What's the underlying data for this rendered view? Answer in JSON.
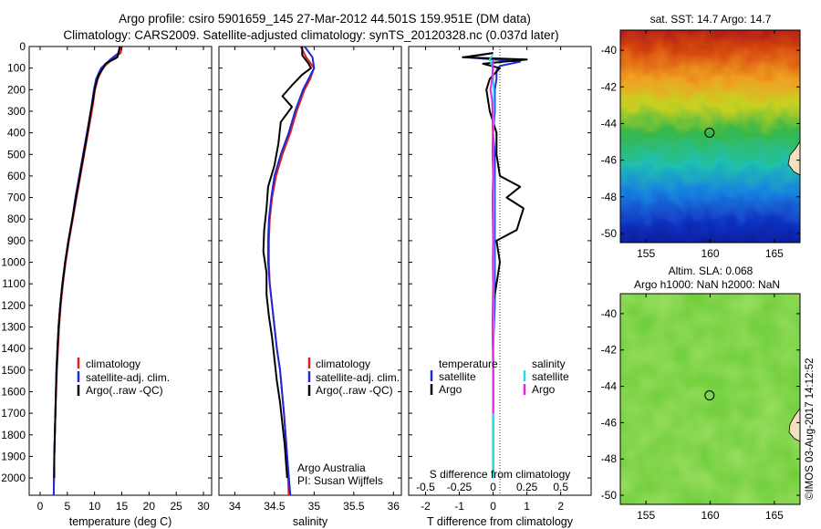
{
  "header": {
    "line1": "Argo profile: csiro 5901659_145 27-Mar-2012 44.501S 159.951E (DM data)",
    "line2": "Climatology: CARS2009. Satellite-adjusted climatology: synTS_20120328.nc (0.037d later)"
  },
  "colors": {
    "climatology": "#e0201c",
    "satellite": "#1c2ad8",
    "argo": "#000000",
    "sal_satellite": "#22dde6",
    "sal_argo": "#e026e0"
  },
  "depth_ticks": [
    "0",
    "100",
    "200",
    "300",
    "400",
    "500",
    "600",
    "700",
    "800",
    "900",
    "1000",
    "1100",
    "1200",
    "1300",
    "1400",
    "1500",
    "1600",
    "1700",
    "1800",
    "1900",
    "2000"
  ],
  "chart_data": [
    {
      "type": "line",
      "title": "",
      "xlabel": "temperature (deg C)",
      "ylabel": "depth",
      "xlim": [
        -2,
        31.5
      ],
      "ylim": [
        2080,
        0
      ],
      "xticks": [
        "0",
        "5",
        "10",
        "15",
        "20",
        "25",
        "30"
      ],
      "xtick_values": [
        0,
        5,
        10,
        15,
        20,
        25,
        30
      ],
      "legend": [
        "climatology",
        "satellite-adj. clim.",
        "Argo(..raw -QC)"
      ],
      "series": [
        {
          "name": "climatology",
          "depth": [
            0,
            30,
            60,
            100,
            150,
            200,
            300,
            400,
            500,
            600,
            700,
            800,
            900,
            1000,
            1100,
            1200,
            1300,
            1400,
            1500,
            1700,
            1900,
            2080
          ],
          "values": [
            15.0,
            14.8,
            13.2,
            11.5,
            10.6,
            10.1,
            9.5,
            8.8,
            8.1,
            7.4,
            6.7,
            6.0,
            5.3,
            4.7,
            4.2,
            3.8,
            3.5,
            3.3,
            3.1,
            2.8,
            2.6,
            2.5
          ]
        },
        {
          "name": "satellite-adj. clim.",
          "depth": [
            0,
            30,
            60,
            100,
            150,
            200,
            300,
            400,
            500,
            600,
            700,
            800,
            900,
            1000,
            1100,
            1200,
            1300,
            1400,
            1500,
            1700,
            1900,
            2080
          ],
          "values": [
            14.6,
            14.4,
            12.9,
            11.2,
            10.3,
            9.9,
            9.3,
            8.6,
            7.9,
            7.2,
            6.5,
            5.9,
            5.2,
            4.6,
            4.1,
            3.7,
            3.4,
            3.2,
            3.0,
            2.8,
            2.6,
            2.5
          ]
        },
        {
          "name": "Argo(..raw -QC)",
          "depth": [
            0,
            20,
            50,
            80,
            100,
            130,
            160,
            200,
            250,
            300,
            400,
            500,
            600,
            700,
            800,
            900,
            1000,
            1100,
            1200,
            1300,
            1400,
            1500,
            1600,
            1700,
            1800,
            1900,
            2000
          ],
          "values": [
            14.7,
            14.5,
            14.2,
            12.0,
            11.6,
            10.8,
            10.4,
            10.0,
            9.7,
            9.3,
            8.7,
            8.0,
            7.3,
            6.6,
            5.9,
            5.2,
            4.6,
            4.1,
            3.7,
            3.4,
            3.2,
            3.0,
            2.9,
            2.8,
            2.7,
            2.6,
            2.6
          ]
        }
      ]
    },
    {
      "type": "line",
      "title": "",
      "xlabel": "salinity",
      "ylabel": "depth",
      "xlim": [
        33.8,
        36.1
      ],
      "ylim": [
        2080,
        0
      ],
      "xticks": [
        "34",
        "34.5",
        "35",
        "35.5",
        "36"
      ],
      "xtick_values": [
        34,
        34.5,
        35,
        35.5,
        36
      ],
      "legend": [
        "climatology",
        "satellite-adj. clim.",
        "Argo(..raw -QC)"
      ],
      "annotation": [
        "Argo Australia",
        "PI: Susan Wijffels"
      ],
      "series": [
        {
          "name": "climatology",
          "depth": [
            0,
            50,
            100,
            150,
            200,
            300,
            400,
            500,
            600,
            700,
            800,
            900,
            1000,
            1100,
            1200,
            1300,
            1400,
            1500,
            1700,
            1900,
            2080
          ],
          "values": [
            34.83,
            34.9,
            35.0,
            34.95,
            34.88,
            34.78,
            34.7,
            34.6,
            34.52,
            34.47,
            34.44,
            34.43,
            34.43,
            34.44,
            34.47,
            34.5,
            34.53,
            34.57,
            34.62,
            34.66,
            34.68
          ]
        },
        {
          "name": "satellite-adj. clim.",
          "depth": [
            0,
            50,
            100,
            150,
            200,
            300,
            400,
            500,
            600,
            700,
            800,
            900,
            1000,
            1100,
            1200,
            1300,
            1400,
            1500,
            1700,
            1900,
            2080
          ],
          "values": [
            34.88,
            34.98,
            35.0,
            34.93,
            34.86,
            34.76,
            34.68,
            34.58,
            34.5,
            34.46,
            34.43,
            34.42,
            34.42,
            34.44,
            34.47,
            34.5,
            34.53,
            34.57,
            34.62,
            34.66,
            34.7
          ]
        },
        {
          "name": "Argo(..raw -QC)",
          "depth": [
            0,
            40,
            80,
            100,
            130,
            180,
            230,
            280,
            350,
            450,
            550,
            650,
            750,
            850,
            950,
            1050,
            1150,
            1250,
            1350,
            1450,
            1550,
            1650,
            1750,
            1850,
            1950,
            2000
          ],
          "values": [
            34.85,
            34.85,
            34.93,
            34.96,
            34.85,
            34.72,
            34.6,
            34.72,
            34.58,
            34.55,
            34.5,
            34.42,
            34.4,
            34.37,
            34.36,
            34.4,
            34.4,
            34.43,
            34.47,
            34.5,
            34.53,
            34.57,
            34.6,
            34.63,
            34.65,
            34.66
          ]
        }
      ]
    },
    {
      "type": "line",
      "title": "",
      "xlabel": "T difference from climatology",
      "xlabel_top": "S difference from climatology",
      "ylabel": "depth",
      "xlim": [
        -2.5,
        2.9
      ],
      "ylim": [
        2080,
        0
      ],
      "xticks": [
        "-2",
        "-1",
        "0",
        "1",
        "2"
      ],
      "xtick_values": [
        -2,
        -1,
        0,
        1,
        2
      ],
      "xticks_top": [
        "-0.5",
        "-0.25",
        "0",
        "0.25",
        "0.5"
      ],
      "legend_left_title": "temperature",
      "legend_right_title": "salinity",
      "legend": [
        "satellite",
        "Argo",
        "satellite",
        "Argo"
      ],
      "series": [
        {
          "name": "T satellite",
          "depth": [
            30,
            50,
            70,
            90,
            110,
            150,
            200,
            300,
            400,
            500,
            600,
            700,
            800,
            900,
            1000,
            1200,
            1400,
            1600,
            1800,
            2000
          ],
          "values": [
            0.0,
            -0.8,
            0.8,
            0.2,
            0.1,
            0.1,
            0.05,
            0.05,
            0.0,
            0.05,
            0.05,
            0.05,
            0.05,
            0.05,
            0.05,
            0.05,
            0.0,
            0.0,
            0.0,
            0.0
          ]
        },
        {
          "name": "T Argo",
          "depth": [
            30,
            50,
            60,
            80,
            100,
            150,
            200,
            300,
            400,
            500,
            600,
            650,
            700,
            750,
            800,
            850,
            900,
            1000,
            1100,
            1200,
            1400,
            1600,
            1800,
            2000
          ],
          "values": [
            0.0,
            -0.9,
            1.0,
            -0.3,
            0.2,
            -0.1,
            -0.2,
            -0.1,
            0.1,
            0.1,
            0.2,
            0.8,
            0.4,
            0.9,
            0.8,
            0.7,
            0.1,
            0.2,
            0.1,
            0.0,
            0.0,
            0.0,
            0.0,
            0.0
          ]
        },
        {
          "name": "S satellite",
          "depth": [
            40,
            60,
            80,
            100,
            150,
            200,
            300,
            400,
            500,
            600,
            800,
            1000,
            1200,
            1400,
            1600,
            1800,
            2000
          ],
          "values": [
            -0.02,
            -0.1,
            -0.05,
            0.0,
            0.0,
            0.02,
            0.02,
            0.0,
            0.0,
            0.02,
            0.02,
            0.02,
            0.02,
            0.0,
            0.0,
            0.0,
            0.0
          ]
        },
        {
          "name": "S Argo",
          "depth": [
            60,
            100,
            150,
            200,
            250,
            300,
            400,
            500,
            600,
            700,
            800,
            900,
            1000,
            1100,
            1200,
            1300,
            1400,
            1500,
            1600,
            1700
          ],
          "values": [
            0.0,
            -0.01,
            -0.03,
            -0.08,
            -0.03,
            -0.02,
            -0.01,
            -0.02,
            0.0,
            -0.02,
            -0.01,
            0.0,
            -0.01,
            0.0,
            -0.01,
            -0.02,
            -0.01,
            0.0,
            0.0,
            0.0
          ]
        }
      ]
    },
    {
      "type": "heatmap",
      "title": "sat. SST: 14.7 Argo: 14.7",
      "xticks": [
        "155",
        "160",
        "165"
      ],
      "xtick_values": [
        155,
        160,
        165
      ],
      "yticks": [
        "-40",
        "-42",
        "-44",
        "-46",
        "-48",
        "-50"
      ],
      "ytick_values": [
        -40,
        -42,
        -44,
        -46,
        -48,
        -50
      ],
      "xlim": [
        153,
        167
      ],
      "ylim": [
        -50.5,
        -38.9
      ],
      "marker": {
        "lon": 159.95,
        "lat": -44.5
      }
    },
    {
      "type": "heatmap",
      "title": "Altim. SLA: 0.068",
      "subtitle": "Argo h1000: NaN h2000: NaN",
      "xticks": [
        "155",
        "160",
        "165"
      ],
      "xtick_values": [
        155,
        160,
        165
      ],
      "yticks": [
        "-40",
        "-42",
        "-44",
        "-46",
        "-48",
        "-50"
      ],
      "ytick_values": [
        -40,
        -42,
        -44,
        -46,
        -48,
        -50
      ],
      "xlim": [
        153,
        167
      ],
      "ylim": [
        -50.5,
        -38.9
      ],
      "marker": {
        "lon": 159.95,
        "lat": -44.5
      }
    }
  ],
  "footer": {
    "credit": "©IMOS 03-Aug-2017 14:12:52"
  }
}
